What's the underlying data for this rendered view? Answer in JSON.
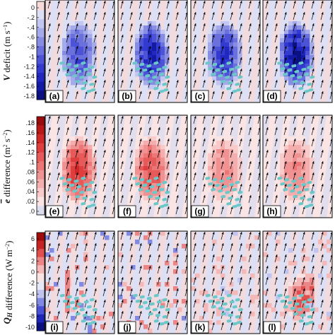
{
  "chart_data": [
    {
      "type": "heatmap",
      "row": "V deficit",
      "colorbar": {
        "label_symbol": "V",
        "label_text": " deficit (m s",
        "label_sup": "−1",
        "label_close": ")",
        "ticks": [
          "0",
          "-.2",
          "-.4",
          "-.6",
          "-.8",
          "-1",
          "-1.2",
          "-1.4",
          "-1.6",
          "-1.8"
        ],
        "range": [
          -1.9,
          0.1
        ],
        "colors": [
          "#f6dada",
          "#dde0f5",
          "#c2c6f0",
          "#a5aaea",
          "#878de3",
          "#6a70dc",
          "#4c53d6",
          "#323ad0",
          "#2028bf",
          "#121aa6",
          "#0b1180"
        ]
      },
      "panels": [
        {
          "label": "(a)",
          "peak": -1.2
        },
        {
          "label": "(b)",
          "peak": -1.6
        },
        {
          "label": "(c)",
          "peak": -1.4
        },
        {
          "label": "(d)",
          "peak": -1.8
        }
      ]
    },
    {
      "type": "heatmap",
      "row": "e difference",
      "colorbar": {
        "label_symbol": "e",
        "label_text": " difference (m",
        "label_sup": "2",
        "label_mid": " s",
        "label_sup2": "−2",
        "label_close": ")",
        "ticks": [
          ".18",
          ".16",
          ".14",
          ".12",
          ".1",
          ".08",
          ".06",
          ".04",
          ".02",
          ".0"
        ],
        "range": [
          -0.01,
          0.19
        ],
        "colors": [
          "#dcdcef",
          "#fbe4e4",
          "#f8caca",
          "#f4aeae",
          "#f09292",
          "#ec7676",
          "#e65a5a",
          "#de3e3e",
          "#d02828",
          "#b81818",
          "#9a0c0c"
        ]
      },
      "panels": [
        {
          "label": "(e)",
          "peak": 0.14
        },
        {
          "label": "(f)",
          "peak": 0.12
        },
        {
          "label": "(g)",
          "peak": 0.08
        },
        {
          "label": "(h)",
          "peak": 0.08
        }
      ]
    },
    {
      "type": "heatmap",
      "row": "QH difference",
      "colorbar": {
        "label_symbol": "Q",
        "label_sub": "H",
        "label_text": " difference (W m",
        "label_sup": "−2",
        "label_close": ")",
        "ticks": [
          "6",
          "4",
          "2",
          "0",
          "-2",
          "-4",
          "-6",
          "-8",
          "-10"
        ],
        "range": [
          -11,
          8
        ],
        "colors": [
          "#0b1180",
          "#1e26b8",
          "#4850d4",
          "#8289e2",
          "#c0c4ef",
          "#e6e7f6",
          "#f9e2e2",
          "#f4b8b8",
          "#ec8686",
          "#e04e4e",
          "#c62424",
          "#a00c0c"
        ]
      },
      "panels": [
        {
          "label": "(i)"
        },
        {
          "label": "(j)"
        },
        {
          "label": "(k)"
        },
        {
          "label": "(l)",
          "peak": 7
        }
      ]
    }
  ],
  "colors": {
    "negative_bg": "#dde0f5",
    "positive_bg": "#f6dada",
    "terrain_markers": "#6cc8c8",
    "arrows": "#000000"
  }
}
